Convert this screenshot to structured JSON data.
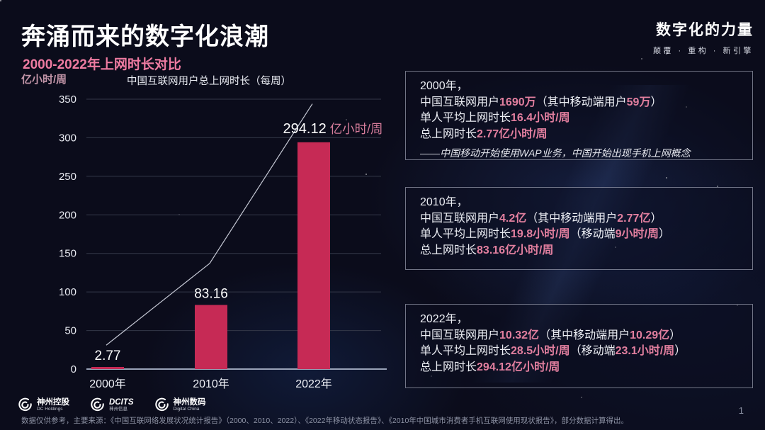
{
  "header": {
    "title": "奔涌而来的数字化浪潮",
    "subtitle": "2000-2022年上网时长对比",
    "brand": {
      "name": "数字化的力量",
      "tagline": "颠覆 · 重构 · 新引擎"
    }
  },
  "chart_data": {
    "type": "bar",
    "title": "中国互联网用户总上网时长（每周）",
    "ylabel": "亿小时/周",
    "xlabel": "",
    "categories": [
      "2000年",
      "2010年",
      "2022年"
    ],
    "values": [
      2.77,
      83.16,
      294.12
    ],
    "bar_labels": [
      "2.77",
      "83.16",
      "294.12"
    ],
    "last_bar_label_suffix": " 亿小时/周",
    "ylim": [
      0,
      350
    ],
    "ytick_step": 50,
    "grid": true,
    "legend": false,
    "bar_color": "#c62a55",
    "trend_line": {
      "present": true,
      "y_values_approx": [
        31,
        137,
        344
      ]
    }
  },
  "panels": [
    {
      "id": "2000",
      "lines": [
        [
          {
            "t": "2000年，"
          }
        ],
        [
          {
            "t": "中国互联网用户"
          },
          {
            "t": "1690万",
            "hl": true
          },
          {
            "t": "（其中移动端用户"
          },
          {
            "t": "59万",
            "hl": true
          },
          {
            "t": "）"
          }
        ],
        [
          {
            "t": "单人平均上网时长"
          },
          {
            "t": "16.4小时/周",
            "hl": true
          }
        ],
        [
          {
            "t": "总上网时长"
          },
          {
            "t": "2.77亿小时/周",
            "hl": true
          }
        ]
      ],
      "note": "——中国移动开始使用WAP业务，中国开始出现手机上网概念"
    },
    {
      "id": "2010",
      "lines": [
        [
          {
            "t": "2010年，"
          }
        ],
        [
          {
            "t": "中国互联网用户"
          },
          {
            "t": "4.2亿",
            "hl": true
          },
          {
            "t": "（其中移动端用户"
          },
          {
            "t": "2.77亿",
            "hl": true
          },
          {
            "t": "）"
          }
        ],
        [
          {
            "t": "单人平均上网时长"
          },
          {
            "t": "19.8小时/周",
            "hl": true
          },
          {
            "t": "（移动端"
          },
          {
            "t": "9小时/周",
            "hl": true
          },
          {
            "t": "）"
          }
        ],
        [
          {
            "t": "总上网时长"
          },
          {
            "t": "83.16亿小时/周",
            "hl": true
          }
        ]
      ],
      "note": ""
    },
    {
      "id": "2022",
      "lines": [
        [
          {
            "t": "2022年，"
          }
        ],
        [
          {
            "t": "中国互联网用户"
          },
          {
            "t": "10.32亿",
            "hl": true
          },
          {
            "t": "（其中移动端用户"
          },
          {
            "t": "10.29亿",
            "hl": true
          },
          {
            "t": "）"
          }
        ],
        [
          {
            "t": "单人平均上网时长"
          },
          {
            "t": "28.5小时/周",
            "hl": true
          },
          {
            "t": "（移动端"
          },
          {
            "t": "23.1小时/周",
            "hl": true
          },
          {
            "t": "）"
          }
        ],
        [
          {
            "t": "总上网时长"
          },
          {
            "t": "294.12亿小时/周",
            "hl": true
          }
        ]
      ],
      "note": ""
    }
  ],
  "footer": {
    "logos": [
      {
        "name": "神州控股",
        "sub": "DC Holdings"
      },
      {
        "name": "DCITS",
        "sub": "神州信息"
      },
      {
        "name": "神州数码",
        "sub": "Digital China"
      }
    ],
    "source": "数据仅供参考，主要来源：《中国互联网络发展状况统计报告》（2000、2010、2022）、《2022年移动状态报告》、《2010年中国城市消费者手机互联网使用现状报告》，部分数据计算得出。",
    "page_number": "1"
  },
  "theme": {
    "background": "#0b0c1b",
    "accent_pink": "#e27f9f",
    "subtitle_pink": "#ee7ba1",
    "bar_color": "#c62a55"
  }
}
